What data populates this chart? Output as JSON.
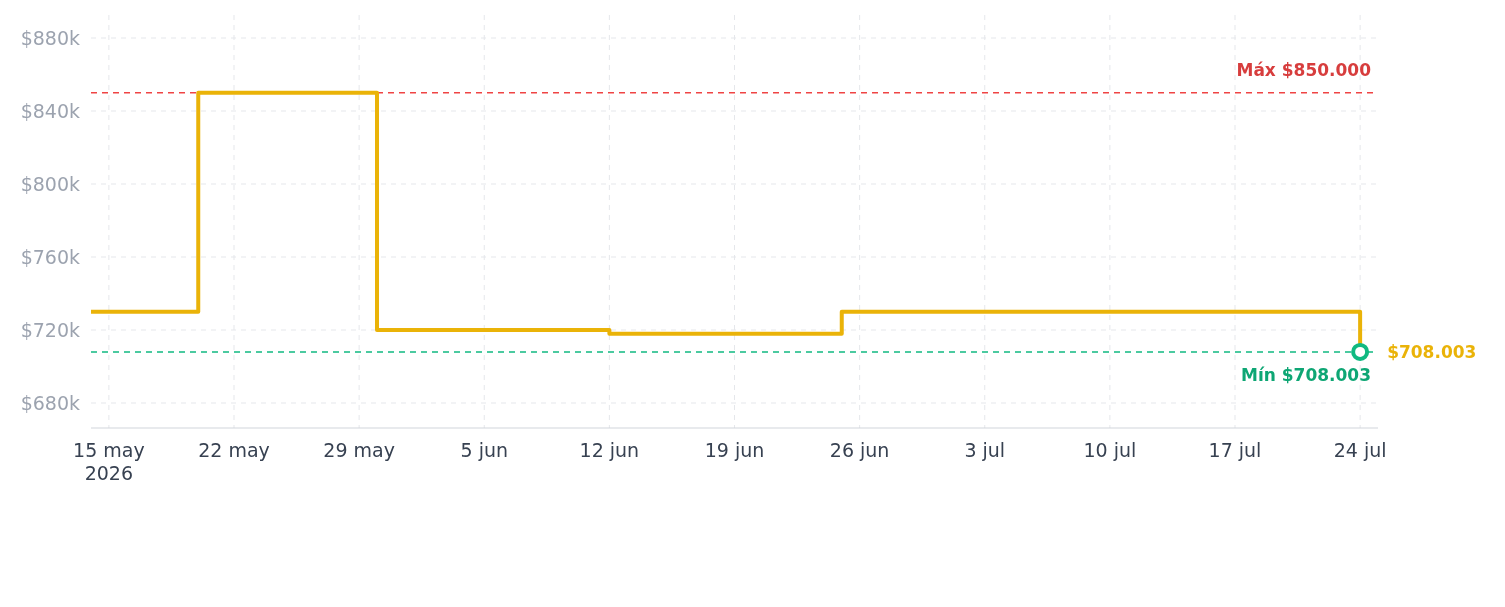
{
  "chart_data": {
    "type": "step",
    "x": [
      "2026-05-14",
      "2026-05-20",
      "2026-05-30",
      "2026-06-12",
      "2026-06-25",
      "2026-07-24"
    ],
    "series": [
      {
        "color": "#eab308",
        "values": [
          730,
          850,
          720,
          718,
          730,
          708.003
        ]
      }
    ],
    "xlim": [
      "2026-05-14",
      "2026-07-25"
    ],
    "xticks": [
      {
        "value": "2026-05-15",
        "label": "15 may\n2026"
      },
      {
        "value": "2026-05-22",
        "label": "22 may"
      },
      {
        "value": "2026-05-29",
        "label": "29 may"
      },
      {
        "value": "2026-06-05",
        "label": "5 jun"
      },
      {
        "value": "2026-06-12",
        "label": "12 jun"
      },
      {
        "value": "2026-06-19",
        "label": "19 jun"
      },
      {
        "value": "2026-06-26",
        "label": "26 jun"
      },
      {
        "value": "2026-07-03",
        "label": "3 jul"
      },
      {
        "value": "2026-07-10",
        "label": "10 jul"
      },
      {
        "value": "2026-07-17",
        "label": "17 jul"
      },
      {
        "value": "2026-07-24",
        "label": "24 jul"
      }
    ],
    "ylim": [
      666.3,
      892.6
    ],
    "yticks": [
      {
        "value": 680,
        "label": "$680k"
      },
      {
        "value": 720,
        "label": "$720k"
      },
      {
        "value": 760,
        "label": "$760k"
      },
      {
        "value": 800,
        "label": "$800k"
      },
      {
        "value": 840,
        "label": "$840k"
      },
      {
        "value": 880,
        "label": "$880k"
      }
    ],
    "ref_lines": [
      {
        "axis": "y",
        "value": 850,
        "label": "Máx $850.000",
        "color": "#ef4444",
        "line_style": "dashed"
      },
      {
        "axis": "y",
        "value": 708.003,
        "label": "Mín $708.003",
        "color": "#10b981",
        "line_style": "dashed"
      }
    ],
    "annotations": [
      {
        "text": "$708.003",
        "x": "2026-07-24",
        "y": 708.003
      }
    ],
    "grid": true,
    "line_style": "solid",
    "marker": "none"
  }
}
